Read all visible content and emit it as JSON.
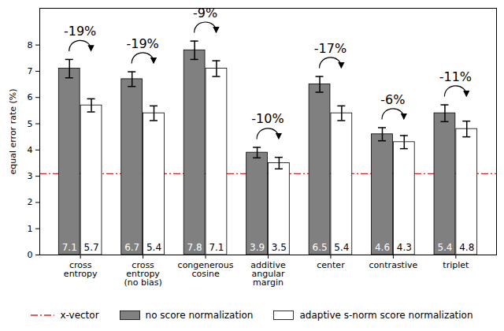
{
  "chart_data": {
    "type": "bar",
    "categories": [
      "cross\nentropy",
      "cross\nentropy\n(no bias)",
      "congenerous\ncosine",
      "additive\nangular\nmargin",
      "center",
      "contrastive",
      "triplet"
    ],
    "series": [
      {
        "name": "no score normalization",
        "color": "#808080",
        "values": [
          7.1,
          6.7,
          7.8,
          3.9,
          6.5,
          4.6,
          5.4
        ],
        "errors": [
          0.35,
          0.28,
          0.35,
          0.2,
          0.3,
          0.25,
          0.32
        ]
      },
      {
        "name": "adaptive s-norm score normalization",
        "color": "#ffffff",
        "values": [
          5.7,
          5.4,
          7.1,
          3.5,
          5.4,
          4.3,
          4.8
        ],
        "errors": [
          0.25,
          0.28,
          0.3,
          0.22,
          0.28,
          0.25,
          0.3
        ]
      }
    ],
    "change_labels": [
      "-19%",
      "-19%",
      "-9%",
      "-10%",
      "-17%",
      "-6%",
      "-11%"
    ],
    "reference_lines": [
      {
        "name": "x-vector",
        "value": 3.1,
        "color": "#d62728",
        "line_style": "dashdot"
      }
    ],
    "y_label": "equal error rate (%)",
    "ylim": [
      0,
      9.4
    ],
    "yticks": [
      0,
      1,
      2,
      3,
      4,
      5,
      6,
      7,
      8
    ],
    "data_labels": true,
    "legend": "bottom"
  }
}
